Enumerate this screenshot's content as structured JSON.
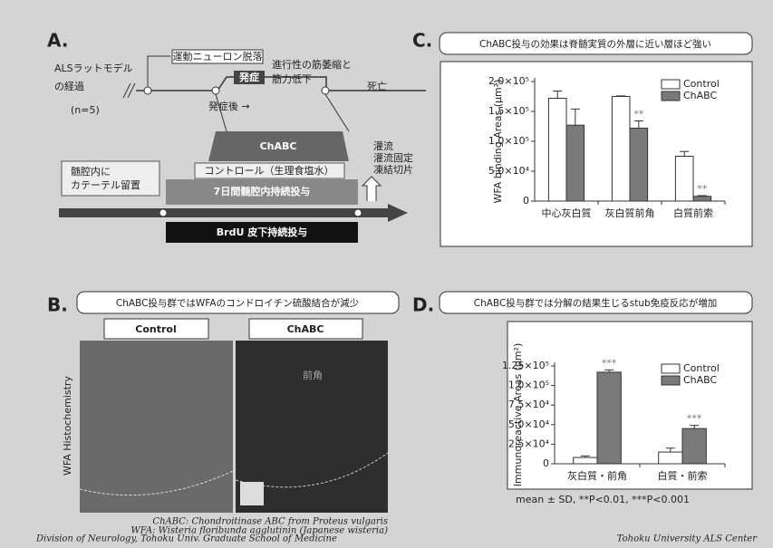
{
  "footer": {
    "left": "Division of Neurology, Tohoku Univ. Graduate School of Medicine",
    "right": "Tohoku University ALS Center"
  },
  "panel_a": {
    "letter": "A.",
    "model": [
      "ALSラットモデル",
      "の経過"
    ],
    "n": "(n=5)",
    "neuron_loss": "運動ニューロン脱落",
    "onset": "発症",
    "progression": [
      "進行性の筋萎縮と",
      "筋力低下"
    ],
    "death": "死亡",
    "after_onset": "発症後 →",
    "chabc": "ChABC",
    "control": "コントロール（生理食塩水）",
    "infusion": "7日間髄腔内持続投与",
    "catheter": [
      "髄腔内に",
      "カテーテル留置"
    ],
    "brdu": "BrdU 皮下持続投与",
    "sampling": [
      "灌流",
      "灌流固定",
      "凍結切片"
    ]
  },
  "panel_b": {
    "letter": "B.",
    "header": "ChABC投与群ではWFAのコンドロイチン硫酸結合が減少",
    "control": "Control",
    "chabc": "ChABC",
    "side_label": "WFA Histochemistry",
    "region": "前角",
    "captions": [
      "ChABC: Chondroitinase ABC from Proteus vulgaris",
      "WFA: Wisteria floribunda agglutinin (Japanese wisteria)"
    ]
  },
  "panel_c": {
    "letter": "C.",
    "header": "ChABC投与の効果は脊髄実質の外層に近い層ほど強い",
    "chart_data": {
      "type": "bar",
      "ylabel": "WFA binding Areas (μm²)",
      "categories": [
        "中心灰白質",
        "灰白質前角",
        "白質前索"
      ],
      "series": [
        {
          "name": "Control",
          "color": "#ffffff",
          "values": [
            172000,
            175000,
            75000
          ],
          "errors": [
            12000,
            1000,
            8000
          ],
          "significance": [
            null,
            null,
            null
          ]
        },
        {
          "name": "ChABC",
          "color": "#7a7a7a",
          "values": [
            127000,
            122000,
            8000
          ],
          "errors": [
            27000,
            12000,
            1000
          ],
          "significance": [
            null,
            "**",
            "**"
          ]
        }
      ],
      "ylim": [
        0,
        200000
      ],
      "yticks": [
        0,
        {
          "value": 50000,
          "label": "5.0×10⁴"
        },
        {
          "value": 100000,
          "label": "1.0×10⁵"
        },
        {
          "value": 150000,
          "label": "1.5×10⁵"
        },
        {
          "value": 200000,
          "label": "2.0×10⁵"
        }
      ],
      "legend": "upper right"
    }
  },
  "panel_d": {
    "letter": "D.",
    "header": "ChABC投与群では分解の結果生じるstub免疫反応が増加",
    "note": "mean ± SD, **P<0.01, ***P<0.001",
    "chart_data": {
      "type": "bar",
      "ylabel": "Immunoreactive Areas (μm²)",
      "categories": [
        "灰白質・前角",
        "白質・前索"
      ],
      "series": [
        {
          "name": "Control",
          "color": "#ffffff",
          "values": [
            8000,
            15000
          ],
          "errors": [
            2000,
            5000
          ],
          "significance": [
            null,
            null
          ]
        },
        {
          "name": "ChABC",
          "color": "#7a7a7a",
          "values": [
            117000,
            45000
          ],
          "errors": [
            3000,
            4000
          ],
          "significance": [
            "***",
            "***"
          ]
        }
      ],
      "ylim": [
        0,
        125000
      ],
      "yticks": [
        0,
        {
          "value": 25000,
          "label": "2.5×10⁴"
        },
        {
          "value": 50000,
          "label": "5.0×10⁴"
        },
        {
          "value": 75000,
          "label": "7.5×10⁴"
        },
        {
          "value": 100000,
          "label": "1.0×10⁵"
        },
        {
          "value": 125000,
          "label": "1.25×10⁵"
        }
      ],
      "legend": "upper right"
    }
  }
}
